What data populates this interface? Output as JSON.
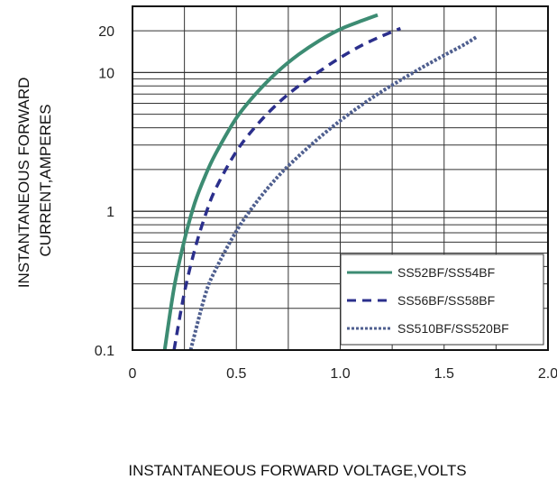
{
  "chart_data": {
    "type": "line",
    "xlabel": "INSTANTANEOUS FORWARD VOLTAGE,VOLTS",
    "ylabel_lines": [
      "INSTANTANEOUS FORWARD",
      "CURRENT,AMPERES"
    ],
    "x_scale": "linear",
    "y_scale": "log",
    "xlim": [
      0,
      2.0
    ],
    "ylim": [
      0.1,
      30
    ],
    "x_ticks": [
      {
        "value": 0,
        "label": "0"
      },
      {
        "value": 0.5,
        "label": "0.5"
      },
      {
        "value": 1.0,
        "label": "1.0"
      },
      {
        "value": 1.5,
        "label": "1.5"
      },
      {
        "value": 2.0,
        "label": "2.0"
      }
    ],
    "y_ticks": [
      {
        "value": 0.1,
        "label": "0.1"
      },
      {
        "value": 1,
        "label": "1"
      },
      {
        "value": 10,
        "label": "10"
      },
      {
        "value": 20,
        "label": "20"
      }
    ],
    "grid": true,
    "legend_position": "lower-right",
    "series": [
      {
        "name": "SS52BF/SS54BF",
        "style": "solid",
        "color": "#3d8c73",
        "x": [
          0.155,
          0.2,
          0.25,
          0.3,
          0.35,
          0.4,
          0.5,
          0.6,
          0.7,
          0.8,
          0.9,
          1.0,
          1.1,
          1.18
        ],
        "y": [
          0.1,
          0.28,
          0.62,
          1.15,
          1.8,
          2.6,
          4.7,
          7.2,
          10.2,
          13.5,
          17.0,
          20.5,
          23.5,
          26.0
        ]
      },
      {
        "name": "SS56BF/SS58BF",
        "style": "dashed",
        "color": "#2b2f8c",
        "x": [
          0.2,
          0.25,
          0.3,
          0.35,
          0.4,
          0.5,
          0.6,
          0.7,
          0.8,
          0.9,
          1.0,
          1.1,
          1.2,
          1.29
        ],
        "y": [
          0.1,
          0.26,
          0.53,
          0.93,
          1.45,
          2.7,
          4.2,
          6.0,
          8.0,
          10.2,
          12.8,
          15.6,
          18.3,
          20.8
        ]
      },
      {
        "name": "SS510BF/SS520BF",
        "style": "dotted",
        "color": "#4f5f8f",
        "x": [
          0.28,
          0.35,
          0.4,
          0.5,
          0.6,
          0.7,
          0.8,
          0.9,
          1.0,
          1.1,
          1.2,
          1.3,
          1.4,
          1.5,
          1.6,
          1.66
        ],
        "y": [
          0.1,
          0.25,
          0.38,
          0.72,
          1.18,
          1.78,
          2.5,
          3.4,
          4.5,
          5.8,
          7.3,
          9.0,
          11.0,
          13.3,
          16.0,
          18.2
        ]
      }
    ]
  }
}
